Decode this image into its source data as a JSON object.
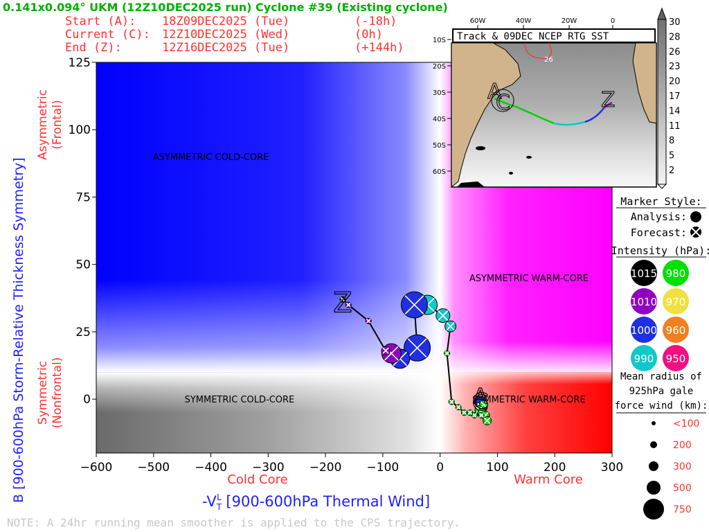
{
  "header": {
    "title": "0.141x0.094° UKM (12Z10DEC2025 run) Cyclone #39 (Existing cyclone)",
    "start_label": "Start (A):",
    "start_time": "18Z09DEC2025 (Tue)",
    "start_offset": "(-18h)",
    "current_label": "Current (C):",
    "current_time": "12Z10DEC2025 (Wed)",
    "current_offset": "(0h)",
    "end_label": "End (Z):",
    "end_time": "12Z16DEC2025 (Tue)",
    "end_offset": "(+144h)"
  },
  "footer_note": "NOTE:  A 24hr running mean smoother is applied to the CPS trajectory.",
  "colors": {
    "title_green": "#00b000",
    "red_text": "#ff3030",
    "blue_text": "#2020ff",
    "note_gray": "#c8c8c8",
    "track_analysis": "#000000"
  },
  "chart_data": {
    "type": "scatter",
    "xlabel": "-V",
    "xlabel_sub": "T",
    "xlabel_sup": "L",
    "xlabel_rest": " [900-600hPa Thermal Wind]",
    "ylabel": "B [900-600hPa Storm-Relative Thickness Symmetry]",
    "x_side_left": "Cold Core",
    "x_side_right": "Warm Core",
    "y_side_top": "Asymmetric",
    "y_side_top_sub": "(Frontal)",
    "y_side_bottom": "Symmetric",
    "y_side_bottom_sub": "(Nonfrontal)",
    "xlim": [
      -600,
      300
    ],
    "ylim": [
      -20,
      125
    ],
    "xticks": [
      -600,
      -500,
      -400,
      -300,
      -200,
      -100,
      0,
      100,
      200,
      300
    ],
    "yticks": [
      0,
      25,
      50,
      75,
      100,
      125
    ],
    "xtick_labels": [
      "-600",
      "-500",
      "-400",
      "-300",
      "-200",
      "-100",
      "0",
      "100",
      "200",
      "300"
    ],
    "ytick_labels": [
      "0",
      "25",
      "50",
      "75",
      "100",
      "125"
    ],
    "quadrant_labels": [
      {
        "text": "ASYMMETRIC COLD-CORE",
        "x": -400,
        "y": 90
      },
      {
        "text": "ASYMMETRIC WARM-CORE",
        "x": 155,
        "y": 45
      },
      {
        "text": "SYMMETRIC COLD-CORE",
        "x": -350,
        "y": 0
      },
      {
        "text": "SYMMETRIC WARM-CORE",
        "x": 155,
        "y": 0
      }
    ],
    "track": [
      {
        "x": 70,
        "y": -1,
        "slp": 1000,
        "r": 300,
        "kind": "analysis"
      },
      {
        "x": 72,
        "y": -3,
        "slp": 980,
        "r": 300,
        "kind": "forecast"
      },
      {
        "x": 76,
        "y": -2,
        "slp": 980,
        "r": 200,
        "kind": "forecast"
      },
      {
        "x": 68,
        "y": -4,
        "slp": 980,
        "r": 200,
        "kind": "forecast"
      },
      {
        "x": 73,
        "y": -5,
        "slp": 980,
        "r": 200,
        "kind": "forecast"
      },
      {
        "x": 79,
        "y": -6,
        "slp": 980,
        "r": 200,
        "kind": "forecast"
      },
      {
        "x": 82,
        "y": -8,
        "slp": 980,
        "r": 200,
        "kind": "forecast"
      },
      {
        "x": 72,
        "y": -6,
        "slp": 980,
        "r": 100,
        "kind": "forecast"
      },
      {
        "x": 60,
        "y": -6,
        "slp": 980,
        "r": 100,
        "kind": "forecast"
      },
      {
        "x": 52,
        "y": -5,
        "slp": 980,
        "r": 100,
        "kind": "forecast"
      },
      {
        "x": 42,
        "y": -5,
        "slp": 980,
        "r": 100,
        "kind": "forecast"
      },
      {
        "x": 32,
        "y": -3,
        "slp": 980,
        "r": 100,
        "kind": "forecast"
      },
      {
        "x": 20,
        "y": -1,
        "slp": 980,
        "r": 100,
        "kind": "forecast"
      },
      {
        "x": 12,
        "y": 17,
        "slp": 980,
        "r": 100,
        "kind": "forecast"
      },
      {
        "x": 18,
        "y": 27,
        "slp": 990,
        "r": 300,
        "kind": "forecast"
      },
      {
        "x": 5,
        "y": 31,
        "slp": 990,
        "r": 400,
        "kind": "forecast"
      },
      {
        "x": -22,
        "y": 35,
        "slp": 990,
        "r": 500,
        "kind": "forecast"
      },
      {
        "x": -45,
        "y": 35,
        "slp": 1000,
        "r": 750,
        "kind": "forecast"
      },
      {
        "x": -40,
        "y": 19,
        "slp": 1000,
        "r": 750,
        "kind": "forecast"
      },
      {
        "x": -70,
        "y": 15,
        "slp": 1000,
        "r": 500,
        "kind": "forecast"
      },
      {
        "x": -85,
        "y": 17,
        "slp": 1010,
        "r": 500,
        "kind": "forecast"
      },
      {
        "x": -95,
        "y": 18,
        "slp": 1010,
        "r": 200,
        "kind": "forecast"
      },
      {
        "x": -125,
        "y": 29,
        "slp": 1010,
        "r": 100,
        "kind": "forecast"
      },
      {
        "x": -160,
        "y": 35,
        "slp": 1010,
        "r": 100,
        "kind": "forecast"
      },
      {
        "x": -170,
        "y": 37,
        "slp": 1015,
        "r": 100,
        "kind": "forecast"
      }
    ],
    "start_marker": {
      "label": "A",
      "x": 70,
      "y": 0
    },
    "current_marker": {
      "label": "C",
      "x": 70,
      "y": -1
    },
    "end_marker": {
      "label": "Z",
      "x": -170,
      "y": 37
    }
  },
  "legend": {
    "marker_style_title": "Marker Style:",
    "analysis_label": "Analysis:",
    "forecast_label": "Forecast:",
    "intensity_title": "Intensity (hPa):",
    "intensity": [
      {
        "value": "1015",
        "color": "#000000",
        "text_color": "#ffffff"
      },
      {
        "value": "980",
        "color": "#00e000",
        "text_color": "#ffffff"
      },
      {
        "value": "1010",
        "color": "#9000c0",
        "text_color": "#ffffff"
      },
      {
        "value": "970",
        "color": "#f0e040",
        "text_color": "#ffffff"
      },
      {
        "value": "1000",
        "color": "#2030e0",
        "text_color": "#ffffff"
      },
      {
        "value": "960",
        "color": "#f08020",
        "text_color": "#ffffff"
      },
      {
        "value": "990",
        "color": "#10c8c8",
        "text_color": "#ffffff"
      },
      {
        "value": "950",
        "color": "#f01080",
        "text_color": "#ffffff"
      }
    ],
    "radius_title_1": "Mean radius of",
    "radius_title_2": "925hPa gale",
    "radius_title_3": "force wind (km):",
    "radius_sizes": [
      {
        "label": "<100",
        "km": 100
      },
      {
        "label": "200",
        "km": 200
      },
      {
        "label": "300",
        "km": 300
      },
      {
        "label": "500",
        "km": 500
      },
      {
        "label": "750",
        "km": 750
      }
    ]
  },
  "inset_map": {
    "title": "Track & 09DEC NCEP RTG SST",
    "lon_labels": [
      "60W",
      "40W",
      "20W",
      "0"
    ],
    "lat_labels": [
      "10S",
      "20S",
      "30S",
      "40S",
      "50S",
      "60S"
    ],
    "contour_label": "26",
    "start_label": "A",
    "current_label": "C",
    "end_label": "Z",
    "colorbar_labels": [
      "30",
      "28",
      "26",
      "23",
      "20",
      "17",
      "14",
      "11",
      "8",
      "5",
      "2"
    ]
  }
}
